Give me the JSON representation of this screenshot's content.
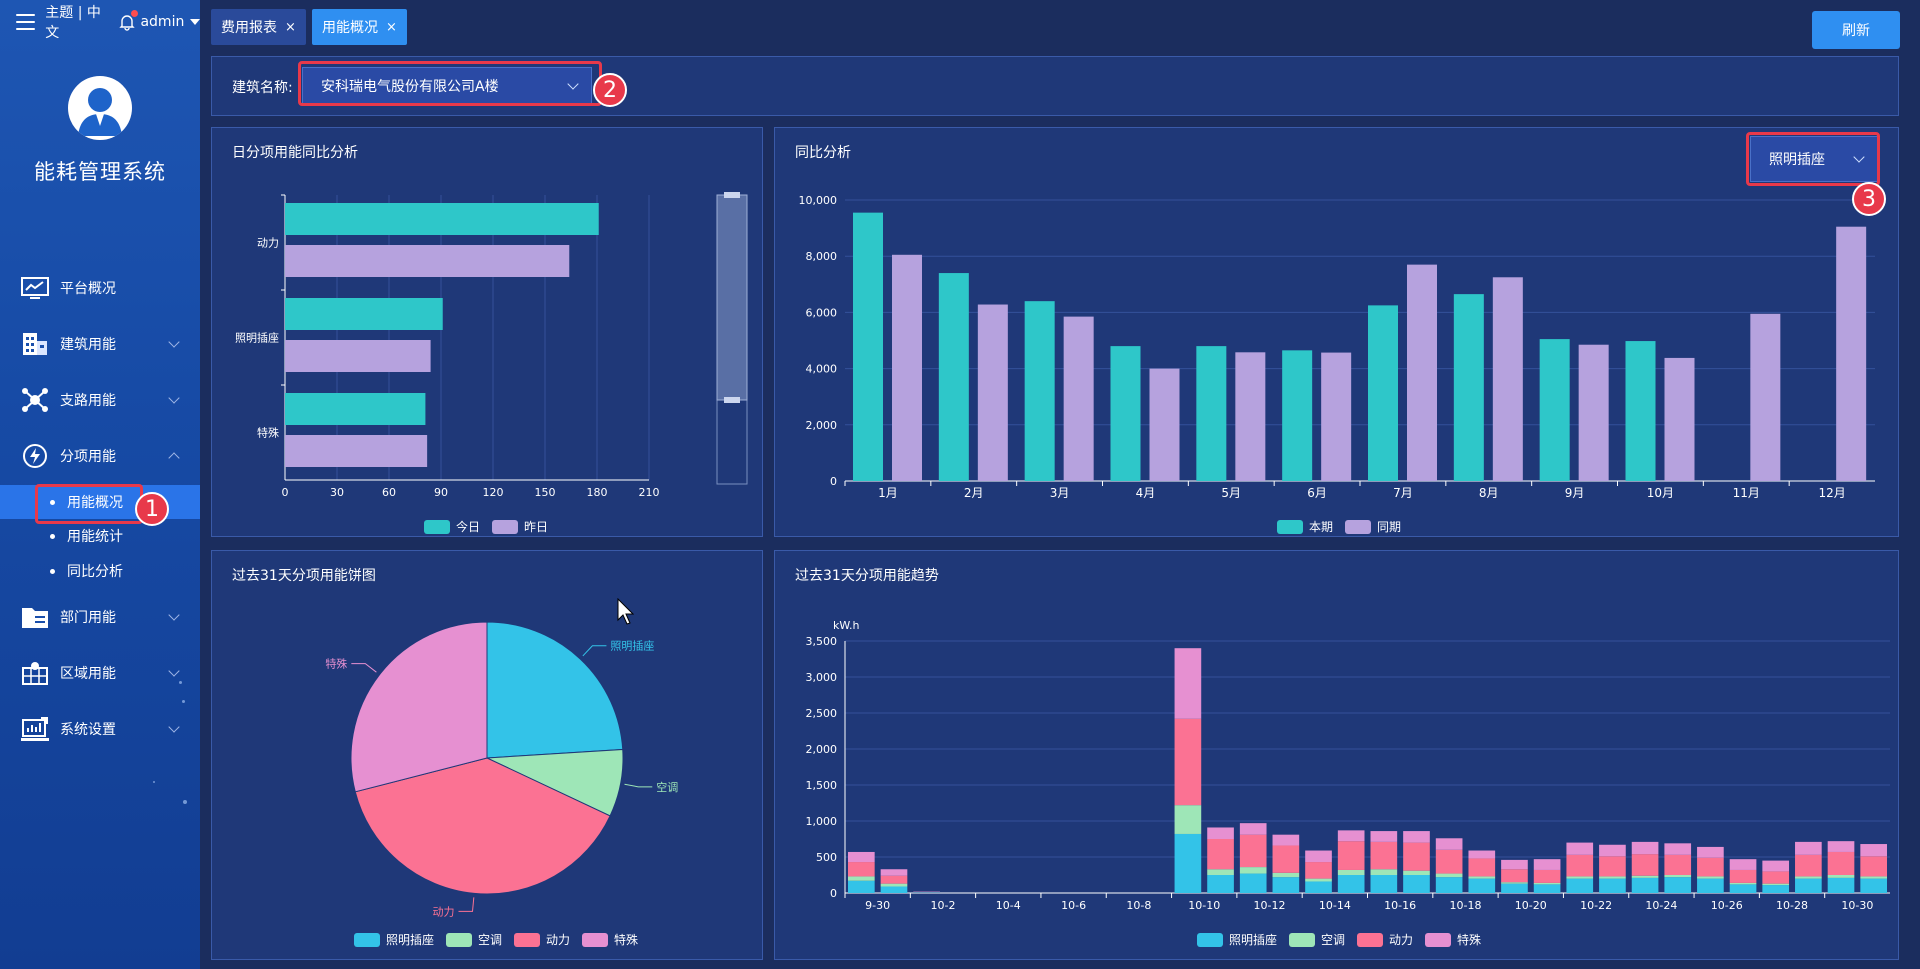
{
  "header": {
    "theme_lang": "主题 | 中文",
    "user": "admin",
    "tabs": [
      {
        "label": "费用报表",
        "close": "×"
      },
      {
        "label": "用能概况",
        "close": "×"
      }
    ],
    "refresh_label": "刷新"
  },
  "sidebar": {
    "system_title": "能耗管理系统",
    "menu": [
      {
        "label": "平台概况",
        "icon": "monitor-chart-icon"
      },
      {
        "label": "建筑用能",
        "icon": "building-icon"
      },
      {
        "label": "支路用能",
        "icon": "network-icon"
      },
      {
        "label": "分项用能",
        "icon": "power-icon"
      },
      {
        "label": "部门用能",
        "icon": "folder-icon"
      },
      {
        "label": "区域用能",
        "icon": "map-icon"
      },
      {
        "label": "系统设置",
        "icon": "settings-chart-icon"
      }
    ],
    "submenu": [
      {
        "label": "用能概况"
      },
      {
        "label": "用能统计"
      },
      {
        "label": "同比分析"
      }
    ]
  },
  "filter": {
    "label": "建筑名称:",
    "building": "安科瑞电气股份有限公司A楼"
  },
  "badges": [
    "1",
    "2",
    "3"
  ],
  "colors": {
    "teal": "#2ec7c9",
    "lavender": "#b6a2de",
    "cyan": "#33c3e8",
    "green": "#9ee6b7",
    "pink": "#fb7293",
    "violet": "#e690d1"
  },
  "panels": {
    "daily": {
      "title": "日分项用能同比分析"
    },
    "yoy": {
      "title": "同比分析",
      "selector": "照明插座"
    },
    "pie": {
      "title": "过去31天分项用能饼图"
    },
    "trend": {
      "title": "过去31天分项用能趋势"
    }
  },
  "chart_data": [
    {
      "type": "bar",
      "orientation": "horizontal",
      "categories": [
        "动力",
        "照明插座",
        "特殊"
      ],
      "series": [
        {
          "name": "今日",
          "values": [
            181,
            91,
            81
          ]
        },
        {
          "name": "昨日",
          "values": [
            164,
            84,
            82
          ]
        }
      ],
      "xticks": [
        "0",
        "30",
        "60",
        "90",
        "120",
        "150",
        "180",
        "210"
      ],
      "xlim": [
        0,
        210
      ]
    },
    {
      "type": "bar",
      "categories": [
        "1月",
        "2月",
        "3月",
        "4月",
        "5月",
        "6月",
        "7月",
        "8月",
        "9月",
        "10月",
        "11月",
        "12月"
      ],
      "series": [
        {
          "name": "本期",
          "values": [
            9550,
            7400,
            6400,
            4800,
            4800,
            4650,
            6250,
            6650,
            5050,
            4980,
            0,
            0
          ]
        },
        {
          "name": "同期",
          "values": [
            8050,
            6280,
            5850,
            4000,
            4580,
            4570,
            7700,
            7250,
            4850,
            4380,
            5950,
            9050
          ]
        }
      ],
      "yticks": [
        "0",
        "2,000",
        "4,000",
        "6,000",
        "8,000",
        "10,000"
      ],
      "ylim": [
        0,
        10000
      ]
    },
    {
      "type": "pie",
      "labels": [
        "照明插座",
        "空调",
        "动力",
        "特殊"
      ],
      "values": [
        24,
        8,
        39,
        29
      ]
    },
    {
      "type": "bar",
      "stacked": true,
      "ylabel": "kW.h",
      "yticks": [
        "0",
        "500",
        "1,000",
        "1,500",
        "2,000",
        "2,500",
        "3,000",
        "3,500"
      ],
      "ylim": [
        0,
        3500
      ],
      "xticks": [
        "9-30",
        "10-2",
        "10-4",
        "10-6",
        "10-8",
        "10-10",
        "10-12",
        "10-14",
        "10-16",
        "10-18",
        "10-20",
        "10-22",
        "10-24",
        "10-26",
        "10-28",
        "10-30"
      ],
      "series": [
        {
          "name": "照明插座",
          "values": [
            170,
            90,
            8,
            0,
            0,
            0,
            0,
            0,
            0,
            0,
            820,
            250,
            270,
            220,
            160,
            250,
            250,
            250,
            220,
            200,
            130,
            120,
            200,
            200,
            210,
            220,
            200,
            120,
            110,
            200,
            210,
            200
          ]
        },
        {
          "name": "空调",
          "values": [
            60,
            40,
            2,
            0,
            0,
            0,
            0,
            0,
            0,
            0,
            400,
            80,
            90,
            60,
            40,
            70,
            80,
            60,
            50,
            30,
            20,
            20,
            30,
            30,
            30,
            30,
            30,
            20,
            20,
            30,
            40,
            30
          ]
        },
        {
          "name": "动力",
          "values": [
            200,
            110,
            5,
            0,
            0,
            0,
            0,
            0,
            0,
            0,
            1200,
            420,
            450,
            380,
            230,
            400,
            380,
            390,
            330,
            250,
            180,
            180,
            300,
            280,
            300,
            280,
            260,
            180,
            170,
            300,
            320,
            280
          ]
        },
        {
          "name": "特殊",
          "values": [
            140,
            90,
            5,
            0,
            0,
            0,
            0,
            0,
            0,
            0,
            980,
            160,
            160,
            150,
            160,
            150,
            150,
            160,
            160,
            110,
            130,
            150,
            170,
            160,
            170,
            160,
            150,
            150,
            150,
            180,
            150,
            170
          ]
        }
      ]
    }
  ]
}
